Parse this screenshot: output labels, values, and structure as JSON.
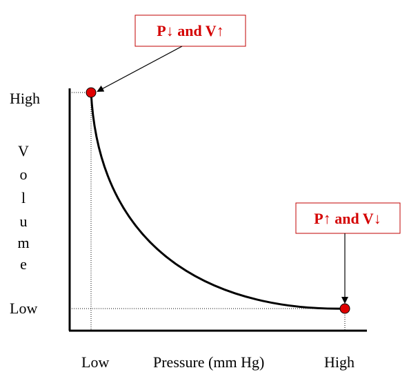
{
  "diagram": {
    "y_axis": {
      "title": "Volume",
      "title_letters": [
        "V",
        "o",
        "l",
        "u",
        "m",
        "e"
      ],
      "high_label": "High",
      "low_label": "Low"
    },
    "x_axis": {
      "title": "Pressure (mm Hg)",
      "low_label": "Low",
      "high_label": "High"
    },
    "callouts": {
      "top": "P↓ and V↑",
      "bottom": "P↑ and V↓"
    },
    "colors": {
      "accent": "#d40000",
      "axis": "#000000",
      "curve": "#000000",
      "guide": "#000000"
    }
  }
}
